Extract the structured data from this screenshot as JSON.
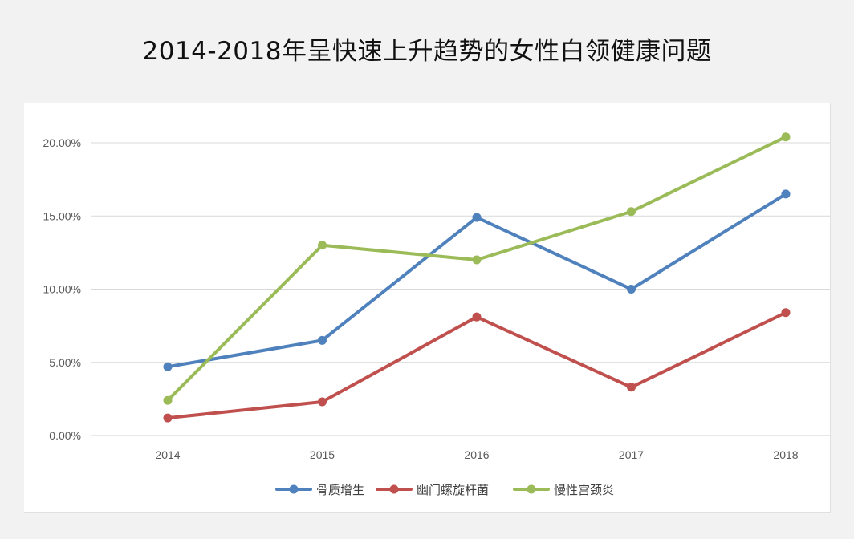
{
  "chart_data": {
    "type": "line",
    "title": "2014-2018年呈快速上升趋势的女性白领健康问题",
    "xlabel": "",
    "ylabel": "",
    "categories": [
      "2014",
      "2015",
      "2016",
      "2017",
      "2018"
    ],
    "ylim": [
      0,
      20
    ],
    "yticks": [
      "0.00%",
      "5.00%",
      "10.00%",
      "15.00%",
      "20.00%"
    ],
    "grid": true,
    "legend_position": "bottom",
    "series": [
      {
        "name": "骨质增生",
        "color": "#4f81bd",
        "values": [
          4.7,
          6.5,
          14.9,
          10.0,
          16.5
        ]
      },
      {
        "name": "幽门螺旋杆菌",
        "color": "#c0504d",
        "values": [
          1.2,
          2.3,
          8.1,
          3.3,
          8.4
        ]
      },
      {
        "name": "慢性宫颈炎",
        "color": "#9bbb59",
        "values": [
          2.4,
          13.0,
          12.0,
          15.3,
          20.4
        ]
      }
    ]
  }
}
